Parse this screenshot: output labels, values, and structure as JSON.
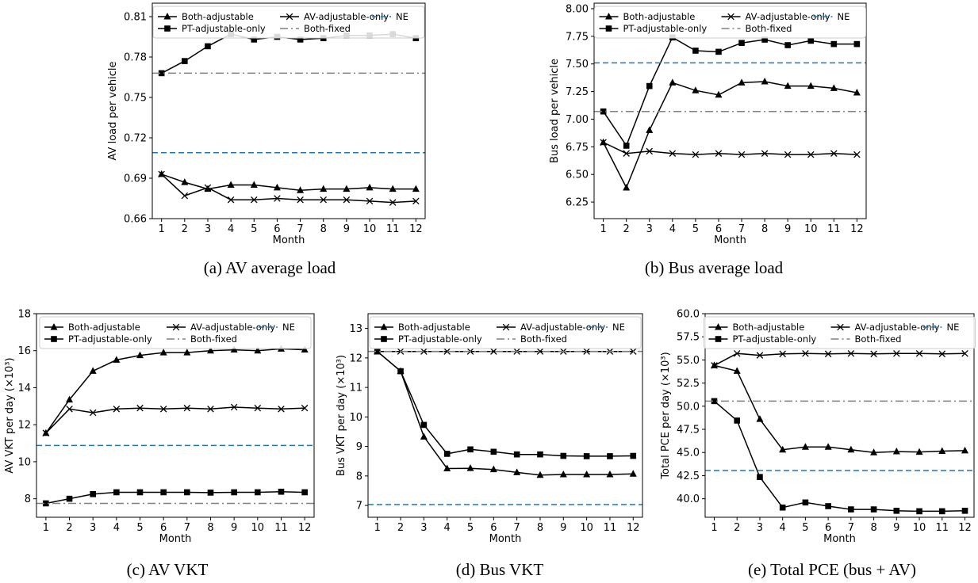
{
  "styles": {
    "Both-adjustable": {
      "color": "#000000",
      "marker": "triangle",
      "dash": "none"
    },
    "PT-adjustable-only": {
      "color": "#000000",
      "marker": "square",
      "dash": "none"
    },
    "AV-adjustable-only": {
      "color": "#000000",
      "marker": "x",
      "dash": "none"
    },
    "Both-fixed": {
      "color": "#808080",
      "marker": "none",
      "dash": "dashdot"
    },
    "NE": {
      "color": "#1f77b4",
      "marker": "none",
      "dash": "dashed"
    }
  },
  "legend_order": [
    "Both-adjustable",
    "PT-adjustable-only",
    "AV-adjustable-only",
    "Both-fixed",
    "NE"
  ],
  "chart_data": [
    {
      "id": "a",
      "caption": "(a) AV average load",
      "type": "line",
      "xlabel": "Month",
      "ylabel": "AV load per vehicle",
      "xlim": [
        0.6,
        12.4
      ],
      "ylim": [
        0.66,
        0.82
      ],
      "yticks": [
        "0.66",
        "0.69",
        "0.72",
        "0.75",
        "0.78",
        "0.81"
      ],
      "xticks": [
        1,
        2,
        3,
        4,
        5,
        6,
        7,
        8,
        9,
        10,
        11,
        12
      ],
      "legend_position": "top",
      "x": [
        1,
        2,
        3,
        4,
        5,
        6,
        7,
        8,
        9,
        10,
        11,
        12
      ],
      "series": [
        {
          "name": "Both-adjustable",
          "values": [
            0.693,
            0.687,
            0.682,
            0.685,
            0.685,
            0.683,
            0.681,
            0.682,
            0.682,
            0.683,
            0.682,
            0.682
          ]
        },
        {
          "name": "PT-adjustable-only",
          "values": [
            0.768,
            0.777,
            0.788,
            0.797,
            0.793,
            0.795,
            0.793,
            0.794,
            0.796,
            0.796,
            0.797,
            0.794
          ]
        },
        {
          "name": "AV-adjustable-only",
          "values": [
            0.693,
            0.677,
            0.683,
            0.674,
            0.674,
            0.675,
            0.674,
            0.674,
            0.674,
            0.673,
            0.672,
            0.673
          ]
        },
        {
          "name": "Both-fixed",
          "constant": 0.768
        },
        {
          "name": "NE",
          "constant": 0.709
        }
      ]
    },
    {
      "id": "b",
      "caption": "(b) Bus average load",
      "type": "line",
      "xlabel": "Month",
      "ylabel": "Bus load per vehicle",
      "xlim": [
        0.6,
        12.4
      ],
      "ylim": [
        6.1,
        8.05
      ],
      "yticks": [
        "6.25",
        "6.50",
        "6.75",
        "7.00",
        "7.25",
        "7.50",
        "7.75",
        "8.00"
      ],
      "xticks": [
        1,
        2,
        3,
        4,
        5,
        6,
        7,
        8,
        9,
        10,
        11,
        12
      ],
      "legend_position": "top",
      "x": [
        1,
        2,
        3,
        4,
        5,
        6,
        7,
        8,
        9,
        10,
        11,
        12
      ],
      "series": [
        {
          "name": "Both-adjustable",
          "values": [
            6.79,
            6.38,
            6.9,
            7.33,
            7.26,
            7.22,
            7.33,
            7.34,
            7.3,
            7.3,
            7.28,
            7.24
          ]
        },
        {
          "name": "PT-adjustable-only",
          "values": [
            7.07,
            6.76,
            7.3,
            7.74,
            7.62,
            7.61,
            7.69,
            7.72,
            7.67,
            7.71,
            7.68,
            7.68
          ]
        },
        {
          "name": "AV-adjustable-only",
          "values": [
            6.79,
            6.69,
            6.71,
            6.69,
            6.68,
            6.69,
            6.68,
            6.69,
            6.68,
            6.68,
            6.69,
            6.68
          ]
        },
        {
          "name": "Both-fixed",
          "constant": 7.07
        },
        {
          "name": "NE",
          "constant": 7.51
        }
      ]
    },
    {
      "id": "c",
      "caption": "(c) AV VKT",
      "type": "line",
      "xlabel": "Month",
      "ylabel": "AV VKT per day (×10³)",
      "xlim": [
        0.6,
        12.4
      ],
      "ylim": [
        7.0,
        18.0
      ],
      "yticks": [
        "8",
        "10",
        "12",
        "14",
        "16",
        "18"
      ],
      "xticks": [
        1,
        2,
        3,
        4,
        5,
        6,
        7,
        8,
        9,
        10,
        11,
        12
      ],
      "legend_position": "top",
      "x": [
        1,
        2,
        3,
        4,
        5,
        6,
        7,
        8,
        9,
        10,
        11,
        12
      ],
      "series": [
        {
          "name": "Both-adjustable",
          "values": [
            11.55,
            13.35,
            14.9,
            15.5,
            15.75,
            15.9,
            15.9,
            16.0,
            16.05,
            16.0,
            16.1,
            16.05
          ]
        },
        {
          "name": "PT-adjustable-only",
          "values": [
            7.75,
            8.0,
            8.25,
            8.35,
            8.35,
            8.35,
            8.35,
            8.33,
            8.35,
            8.35,
            8.38,
            8.35
          ]
        },
        {
          "name": "AV-adjustable-only",
          "values": [
            11.55,
            12.85,
            12.65,
            12.85,
            12.9,
            12.85,
            12.9,
            12.85,
            12.95,
            12.9,
            12.85,
            12.9
          ]
        },
        {
          "name": "Both-fixed",
          "constant": 7.75
        },
        {
          "name": "NE",
          "constant": 10.88
        }
      ]
    },
    {
      "id": "d",
      "caption": "(d) Bus VKT",
      "type": "line",
      "xlabel": "Month",
      "ylabel": "Bus VKT per day (×10³)",
      "xlim": [
        0.6,
        12.4
      ],
      "ylim": [
        6.6,
        13.5
      ],
      "yticks": [
        "7",
        "8",
        "9",
        "10",
        "11",
        "12",
        "13"
      ],
      "xticks": [
        1,
        2,
        3,
        4,
        5,
        6,
        7,
        8,
        9,
        10,
        11,
        12
      ],
      "legend_position": "top",
      "x": [
        1,
        2,
        3,
        4,
        5,
        6,
        7,
        8,
        9,
        10,
        11,
        12
      ],
      "series": [
        {
          "name": "Both-adjustable",
          "values": [
            12.22,
            11.55,
            9.33,
            8.25,
            8.26,
            8.22,
            8.12,
            8.03,
            8.05,
            8.05,
            8.05,
            8.07
          ]
        },
        {
          "name": "PT-adjustable-only",
          "values": [
            12.22,
            11.55,
            9.73,
            8.75,
            8.9,
            8.82,
            8.73,
            8.73,
            8.68,
            8.67,
            8.67,
            8.68
          ]
        },
        {
          "name": "AV-adjustable-only",
          "values": [
            12.22,
            12.22,
            12.22,
            12.22,
            12.22,
            12.22,
            12.22,
            12.22,
            12.22,
            12.22,
            12.22,
            12.22
          ]
        },
        {
          "name": "Both-fixed",
          "constant": 12.22
        },
        {
          "name": "NE",
          "constant": 7.03
        }
      ]
    },
    {
      "id": "e",
      "caption": "(e) Total PCE (bus + AV)",
      "type": "line",
      "xlabel": "Month",
      "ylabel": "Total PCE per day (×10³)",
      "xlim": [
        0.6,
        12.4
      ],
      "ylim": [
        38.0,
        60.0
      ],
      "yticks": [
        "40.0",
        "42.5",
        "45.0",
        "47.5",
        "50.0",
        "52.5",
        "55.0",
        "57.5",
        "60.0"
      ],
      "xticks": [
        1,
        2,
        3,
        4,
        5,
        6,
        7,
        8,
        9,
        10,
        11,
        12
      ],
      "legend_position": "top",
      "x": [
        1,
        2,
        3,
        4,
        5,
        6,
        7,
        8,
        9,
        10,
        11,
        12
      ],
      "series": [
        {
          "name": "Both-adjustable",
          "values": [
            54.4,
            53.8,
            48.6,
            45.3,
            45.6,
            45.6,
            45.3,
            45.0,
            45.1,
            45.05,
            45.15,
            45.2
          ]
        },
        {
          "name": "PT-adjustable-only",
          "values": [
            50.55,
            48.45,
            42.35,
            39.05,
            39.6,
            39.2,
            38.85,
            38.85,
            38.7,
            38.65,
            38.65,
            38.7
          ]
        },
        {
          "name": "AV-adjustable-only",
          "values": [
            54.4,
            55.7,
            55.5,
            55.65,
            55.7,
            55.65,
            55.7,
            55.65,
            55.7,
            55.7,
            55.65,
            55.7
          ]
        },
        {
          "name": "Both-fixed",
          "constant": 50.55
        },
        {
          "name": "NE",
          "constant": 43.05
        }
      ]
    }
  ]
}
